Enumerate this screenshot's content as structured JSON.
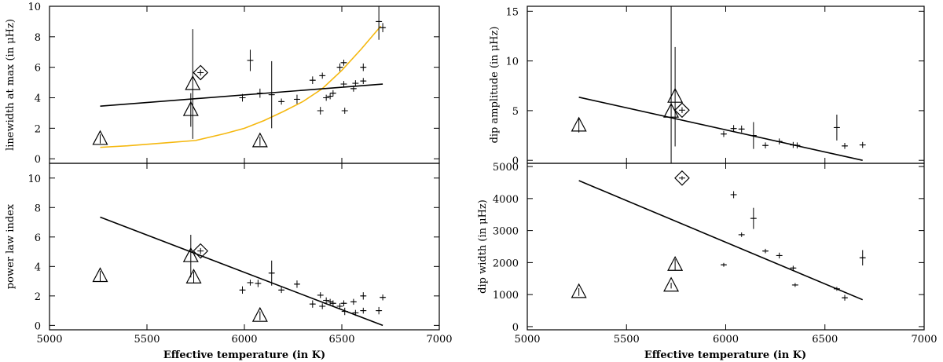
{
  "figure": {
    "colors": {
      "axes": "#000000",
      "fit_line": "#000000",
      "model_curve": "#f5b80f",
      "background": "#ffffff"
    }
  },
  "chart_data": [
    {
      "id": "linewidth",
      "type": "scatter",
      "title": "",
      "xlabel": "",
      "ylabel": "linewidth at max (in μHz)",
      "xlim": [
        5000,
        7000
      ],
      "ylim": [
        -0.3,
        10
      ],
      "xticks": [],
      "yticks": [
        0,
        2,
        4,
        6,
        8,
        10
      ],
      "points": [
        {
          "x": 5990,
          "y": 4.0,
          "ex": 5,
          "ey": 0.25
        },
        {
          "x": 6030,
          "y": 6.45,
          "ex": 12,
          "ey": 0.7
        },
        {
          "x": 6080,
          "y": 4.3,
          "ex": 12,
          "ey": 0.3
        },
        {
          "x": 6140,
          "y": 4.2,
          "ex": 15,
          "ey": 2.2
        },
        {
          "x": 6190,
          "y": 3.75,
          "ex": 10,
          "ey": 0.2
        },
        {
          "x": 6270,
          "y": 3.9,
          "ex": 15,
          "ey": 0.3
        },
        {
          "x": 6350,
          "y": 5.15,
          "ex": 8,
          "ey": 0.25
        },
        {
          "x": 6390,
          "y": 3.15,
          "ex": 10,
          "ey": 0.25
        },
        {
          "x": 6400,
          "y": 5.45,
          "ex": 8,
          "ey": 0.2
        },
        {
          "x": 6420,
          "y": 4.0,
          "ex": 6,
          "ey": 0.2
        },
        {
          "x": 6440,
          "y": 4.1,
          "ex": 6,
          "ey": 0.2
        },
        {
          "x": 6455,
          "y": 4.3,
          "ex": 6,
          "ey": 0.2
        },
        {
          "x": 6490,
          "y": 6.0,
          "ex": 8,
          "ey": 0.25
        },
        {
          "x": 6510,
          "y": 6.3,
          "ex": 8,
          "ey": 0.2
        },
        {
          "x": 6510,
          "y": 4.9,
          "ex": 6,
          "ey": 0.2
        },
        {
          "x": 6515,
          "y": 3.15,
          "ex": 8,
          "ey": 0.2
        },
        {
          "x": 6560,
          "y": 4.6,
          "ex": 8,
          "ey": 0.2
        },
        {
          "x": 6570,
          "y": 4.95,
          "ex": 8,
          "ey": 0.2
        },
        {
          "x": 6610,
          "y": 5.1,
          "ex": 8,
          "ey": 0.2
        },
        {
          "x": 6610,
          "y": 6.0,
          "ex": 8,
          "ey": 0.25
        },
        {
          "x": 6690,
          "y": 9.0,
          "ex": 10,
          "ey": 1.2
        },
        {
          "x": 6710,
          "y": 8.6,
          "ex": 8,
          "ey": 0.3
        }
      ],
      "triangles": [
        {
          "x": 5260,
          "y": 1.3,
          "ex": 0,
          "ey": 0.3
        },
        {
          "x": 5725,
          "y": 3.2,
          "ex": 0,
          "ey": 1.1
        },
        {
          "x": 5735,
          "y": 4.9,
          "ex": 0,
          "ey": 3.6
        },
        {
          "x": 6080,
          "y": 1.15,
          "ex": 0,
          "ey": 0.3
        }
      ],
      "diamonds": [
        {
          "x": 5775,
          "y": 5.65,
          "ex": 8,
          "ey": 0.2
        }
      ],
      "fit_line": {
        "x": [
          5260,
          6710
        ],
        "y": [
          3.45,
          4.9
        ]
      },
      "model_curve": {
        "x": [
          5260,
          5400,
          5600,
          5750,
          5900,
          6000,
          6100,
          6200,
          6300,
          6400,
          6500,
          6600,
          6700
        ],
        "y": [
          0.75,
          0.85,
          1.05,
          1.2,
          1.65,
          2.0,
          2.5,
          3.1,
          3.75,
          4.6,
          5.8,
          7.2,
          8.7
        ]
      }
    },
    {
      "id": "power_law",
      "type": "scatter",
      "title": "",
      "xlabel": "Effective temperature (in K)",
      "ylabel": "power law index",
      "xlim": [
        5000,
        7000
      ],
      "ylim": [
        -0.3,
        11
      ],
      "xticks": [
        5000,
        5500,
        6000,
        6500,
        7000
      ],
      "yticks": [
        0,
        2,
        4,
        6,
        8,
        10
      ],
      "points": [
        {
          "x": 5990,
          "y": 2.4,
          "ex": 5,
          "ey": 0.25
        },
        {
          "x": 6030,
          "y": 2.9,
          "ex": 8,
          "ey": 0.2
        },
        {
          "x": 6070,
          "y": 2.85,
          "ex": 8,
          "ey": 0.25
        },
        {
          "x": 6140,
          "y": 3.55,
          "ex": 15,
          "ey": 0.85
        },
        {
          "x": 6190,
          "y": 2.4,
          "ex": 8,
          "ey": 0.2
        },
        {
          "x": 6270,
          "y": 2.8,
          "ex": 8,
          "ey": 0.25
        },
        {
          "x": 6350,
          "y": 1.45,
          "ex": 8,
          "ey": 0.25
        },
        {
          "x": 6390,
          "y": 2.05,
          "ex": 8,
          "ey": 0.2
        },
        {
          "x": 6400,
          "y": 1.3,
          "ex": 6,
          "ey": 0.2
        },
        {
          "x": 6420,
          "y": 1.7,
          "ex": 6,
          "ey": 0.2
        },
        {
          "x": 6440,
          "y": 1.6,
          "ex": 6,
          "ey": 0.2
        },
        {
          "x": 6455,
          "y": 1.5,
          "ex": 6,
          "ey": 0.2
        },
        {
          "x": 6490,
          "y": 1.3,
          "ex": 8,
          "ey": 0.2
        },
        {
          "x": 6510,
          "y": 1.5,
          "ex": 8,
          "ey": 0.2
        },
        {
          "x": 6515,
          "y": 0.95,
          "ex": 8,
          "ey": 0.25
        },
        {
          "x": 6560,
          "y": 1.6,
          "ex": 8,
          "ey": 0.2
        },
        {
          "x": 6570,
          "y": 0.85,
          "ex": 8,
          "ey": 0.2
        },
        {
          "x": 6610,
          "y": 2.0,
          "ex": 8,
          "ey": 0.25
        },
        {
          "x": 6610,
          "y": 1.0,
          "ex": 8,
          "ey": 0.2
        },
        {
          "x": 6690,
          "y": 1.0,
          "ex": 8,
          "ey": 0.25
        },
        {
          "x": 6710,
          "y": 1.9,
          "ex": 8,
          "ey": 0.2
        }
      ],
      "triangles": [
        {
          "x": 5260,
          "y": 3.35,
          "ex": 0,
          "ey": 0.35
        },
        {
          "x": 5725,
          "y": 4.7,
          "ex": 0,
          "ey": 1.45
        },
        {
          "x": 5740,
          "y": 3.25,
          "ex": 0,
          "ey": 0.4
        },
        {
          "x": 6080,
          "y": 0.65,
          "ex": 0,
          "ey": 0.3
        }
      ],
      "diamonds": [
        {
          "x": 5775,
          "y": 5.05,
          "ex": 8,
          "ey": 0.2
        }
      ],
      "fit_line": {
        "x": [
          5260,
          6710
        ],
        "y": [
          7.35,
          0.0
        ]
      }
    },
    {
      "id": "dip_amplitude",
      "type": "scatter",
      "title": "",
      "xlabel": "",
      "ylabel": "dip amplitude (in μHz)",
      "xlim": [
        5000,
        7000
      ],
      "ylim": [
        -0.3,
        15.5
      ],
      "xticks": [],
      "yticks": [
        0,
        5,
        10,
        15
      ],
      "points": [
        {
          "x": 5990,
          "y": 2.65,
          "ex": 8,
          "ey": 0.3
        },
        {
          "x": 6040,
          "y": 3.2,
          "ex": 8,
          "ey": 0.35
        },
        {
          "x": 6080,
          "y": 3.15,
          "ex": 8,
          "ey": 0.35
        },
        {
          "x": 6140,
          "y": 2.5,
          "ex": 15,
          "ey": 1.35
        },
        {
          "x": 6200,
          "y": 1.5,
          "ex": 8,
          "ey": 0.3
        },
        {
          "x": 6270,
          "y": 1.9,
          "ex": 8,
          "ey": 0.3
        },
        {
          "x": 6340,
          "y": 1.55,
          "ex": 8,
          "ey": 0.3
        },
        {
          "x": 6360,
          "y": 1.5,
          "ex": 8,
          "ey": 0.3
        },
        {
          "x": 6560,
          "y": 3.3,
          "ex": 12,
          "ey": 1.3
        },
        {
          "x": 6600,
          "y": 1.45,
          "ex": 8,
          "ey": 0.3
        },
        {
          "x": 6690,
          "y": 1.55,
          "ex": 10,
          "ey": 0.3
        }
      ],
      "triangles": [
        {
          "x": 5260,
          "y": 3.5,
          "ex": 0,
          "ey": 0.7
        },
        {
          "x": 5725,
          "y": 4.9,
          "ex": 0,
          "ey": 12
        },
        {
          "x": 5745,
          "y": 6.4,
          "ex": 0,
          "ey": 5.0
        }
      ],
      "diamonds": [
        {
          "x": 5780,
          "y": 5.05,
          "ex": 8,
          "ey": 0.3
        }
      ],
      "fit_line": {
        "x": [
          5260,
          6690
        ],
        "y": [
          6.35,
          0.0
        ]
      }
    },
    {
      "id": "dip_width",
      "type": "scatter",
      "title": "",
      "xlabel": "Effective temperature (in K)",
      "ylabel": "dip width (in μHz)",
      "xlim": [
        5000,
        7000
      ],
      "ylim": [
        -100,
        5100
      ],
      "xticks": [
        5000,
        5500,
        6000,
        6500,
        7000
      ],
      "yticks": [
        0,
        1000,
        2000,
        3000,
        4000,
        5000
      ],
      "points": [
        {
          "x": 5990,
          "y": 1930,
          "ex": 8,
          "ey": 60
        },
        {
          "x": 6040,
          "y": 4120,
          "ex": 12,
          "ey": 110
        },
        {
          "x": 6080,
          "y": 2870,
          "ex": 8,
          "ey": 70
        },
        {
          "x": 6140,
          "y": 3380,
          "ex": 15,
          "ey": 330
        },
        {
          "x": 6200,
          "y": 2360,
          "ex": 8,
          "ey": 70
        },
        {
          "x": 6270,
          "y": 2220,
          "ex": 8,
          "ey": 90
        },
        {
          "x": 6340,
          "y": 1830,
          "ex": 8,
          "ey": 70
        },
        {
          "x": 6350,
          "y": 1300,
          "ex": 8,
          "ey": 60
        },
        {
          "x": 6560,
          "y": 1180,
          "ex": 8,
          "ey": 60
        },
        {
          "x": 6600,
          "y": 900,
          "ex": 8,
          "ey": 90
        },
        {
          "x": 6690,
          "y": 2150,
          "ex": 12,
          "ey": 240
        }
      ],
      "triangles": [
        {
          "x": 5260,
          "y": 1080,
          "ex": 0,
          "ey": 120
        },
        {
          "x": 5725,
          "y": 1280,
          "ex": 0,
          "ey": 90
        },
        {
          "x": 5745,
          "y": 1930,
          "ex": 0,
          "ey": 180
        }
      ],
      "diamonds": [
        {
          "x": 5780,
          "y": 4640,
          "ex": 8,
          "ey": 60
        }
      ],
      "fit_line": {
        "x": [
          5260,
          6690
        ],
        "y": [
          4560,
          840
        ]
      }
    }
  ]
}
